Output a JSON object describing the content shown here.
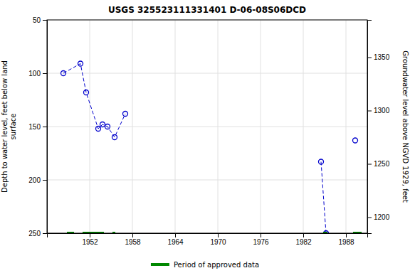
{
  "chart_data": {
    "type": "line",
    "title": "USGS 325523111331401 D-06-08S06DCD",
    "ylabel": "Depth to water level, feet below land\nsurface",
    "y2label": "Groundwater level above NGVD 1929, feet",
    "xlim": [
      1946,
      1991
    ],
    "ylim": [
      250,
      50
    ],
    "y2lim": [
      1185,
      1385
    ],
    "xticks": [
      1952,
      1958,
      1964,
      1970,
      1976,
      1982,
      1988
    ],
    "yticks": [
      50,
      100,
      150,
      200,
      250
    ],
    "y2ticks": [
      1200,
      1250,
      1300,
      1350
    ],
    "grid": true,
    "legend": "bottom",
    "series": [
      {
        "type": "line",
        "color": "#0000cc",
        "line_style": "dashed",
        "marker": "circle",
        "x": [
          1948.3,
          1950.7,
          1951.5,
          1953.2,
          1953.8,
          1954.5,
          1955.5,
          1957.0
        ],
        "values": [
          100,
          91,
          118,
          152,
          148,
          150,
          160,
          138
        ]
      },
      {
        "type": "line",
        "color": "#0000cc",
        "line_style": "dashed",
        "marker": "circle",
        "x": [
          1984.5,
          1985.2
        ],
        "values": [
          183,
          250
        ]
      },
      {
        "type": "scatter",
        "color": "#0000cc",
        "marker": "circle",
        "x": [
          1989.3
        ],
        "values": [
          163
        ]
      },
      {
        "type": "range",
        "name": "Period of approved data",
        "color": "#008800",
        "ranges": [
          [
            1948.8,
            1949.8
          ],
          [
            1951.0,
            1954.0
          ],
          [
            1955.2,
            1955.6
          ],
          [
            1984.8,
            1985.4
          ],
          [
            1989.0,
            1990.2
          ]
        ],
        "values": [
          250,
          250,
          250,
          250,
          250
        ]
      }
    ]
  }
}
